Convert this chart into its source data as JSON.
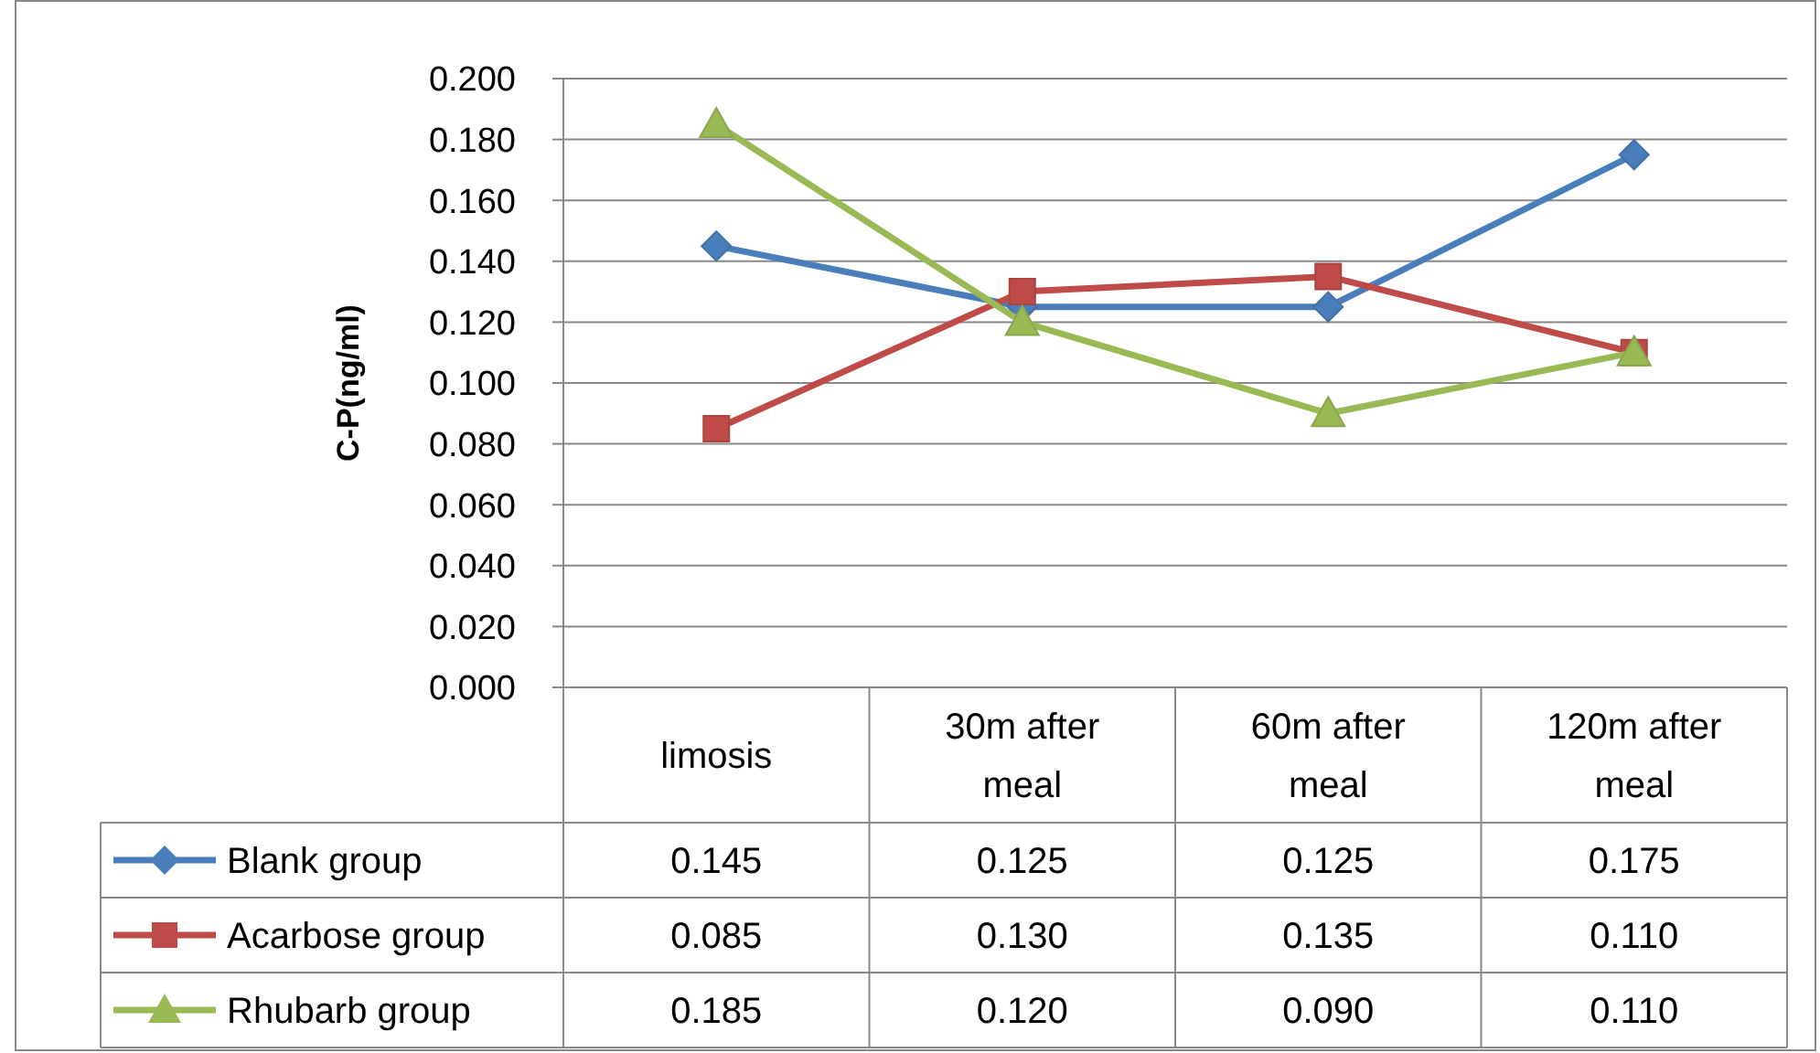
{
  "chart_data": {
    "type": "line",
    "ylabel": "C-P(ng/ml)",
    "categories": [
      "limosis",
      "30m after meal",
      "60m after meal",
      "120m after meal"
    ],
    "series": [
      {
        "name": "Blank group",
        "color": "#4a7ebb",
        "marker": "diamond",
        "values": [
          0.145,
          0.125,
          0.125,
          0.175
        ],
        "value_labels": [
          "0.145",
          "0.125",
          "0.125",
          "0.175"
        ]
      },
      {
        "name": "Acarbose group",
        "color": "#be4b48",
        "marker": "square",
        "values": [
          0.085,
          0.13,
          0.135,
          0.11
        ],
        "value_labels": [
          "0.085",
          "0.130",
          "0.135",
          "0.110"
        ]
      },
      {
        "name": "Rhubarb group",
        "color": "#98b954",
        "marker": "triangle",
        "values": [
          0.185,
          0.12,
          0.09,
          0.11
        ],
        "value_labels": [
          "0.185",
          "0.120",
          "0.090",
          "0.110"
        ]
      }
    ],
    "ylim": [
      0,
      0.2
    ],
    "yticks": [
      {
        "value": 0,
        "label": "0.000"
      },
      {
        "value": 0.02,
        "label": "0.020"
      },
      {
        "value": 0.04,
        "label": "0.040"
      },
      {
        "value": 0.06,
        "label": "0.060"
      },
      {
        "value": 0.08,
        "label": "0.080"
      },
      {
        "value": 0.1,
        "label": "0.100"
      },
      {
        "value": 0.12,
        "label": "0.120"
      },
      {
        "value": 0.14,
        "label": "0.140"
      },
      {
        "value": 0.16,
        "label": "0.160"
      },
      {
        "value": 0.18,
        "label": "0.180"
      },
      {
        "value": 0.2,
        "label": "0.200"
      }
    ],
    "grid": "y",
    "legend": "bottom",
    "line_style": "solid"
  }
}
